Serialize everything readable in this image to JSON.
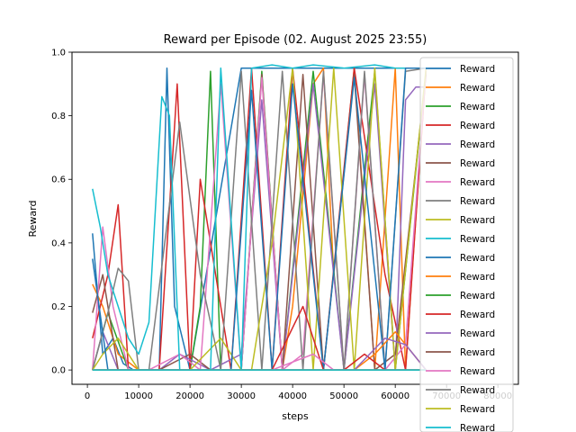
{
  "chart_data": {
    "type": "line",
    "title": "Reward per Episode (02. August 2025 23:55)",
    "xlabel": "steps",
    "ylabel": "Reward",
    "xlim": [
      -3000,
      84000
    ],
    "ylim": [
      -0.045,
      1.0
    ],
    "xticks": [
      0,
      10000,
      20000,
      30000,
      40000,
      50000,
      60000,
      70000,
      80000
    ],
    "xtick_labels": [
      "0",
      "10000",
      "20000",
      "30000",
      "40000",
      "50000",
      "60000",
      "70000",
      "80000"
    ],
    "yticks": [
      0.0,
      0.2,
      0.4,
      0.6,
      0.8,
      1.0
    ],
    "ytick_labels": [
      "0.0",
      "0.2",
      "0.4",
      "0.6",
      "0.8",
      "1.0"
    ],
    "grid": false,
    "legend": "upper-right",
    "colors": [
      "#1f77b4",
      "#ff7f0e",
      "#2ca02c",
      "#d62728",
      "#9467bd",
      "#8c564b",
      "#e377c2",
      "#7f7f7f",
      "#bcbd22",
      "#17becf"
    ],
    "series": [
      {
        "name": "Reward",
        "x": [
          1000,
          3000,
          5000,
          7000,
          9000,
          12000,
          14000,
          15500,
          17000,
          20000,
          30000,
          40000,
          50000,
          60000,
          66000
        ],
        "y": [
          0.43,
          0.05,
          0.1,
          0.02,
          0.0,
          0.0,
          0.0,
          0.95,
          0.2,
          0.0,
          0.95,
          0.95,
          0.95,
          0.95,
          0.95
        ]
      },
      {
        "name": "Reward",
        "x": [
          1000,
          3000,
          6000,
          10000,
          20000,
          30000,
          38000,
          40000,
          44000,
          46000,
          48000,
          52000,
          56000,
          60000,
          62000,
          66000
        ],
        "y": [
          0.27,
          0.2,
          0.05,
          0.0,
          0.0,
          0.0,
          0.0,
          0.2,
          0.9,
          0.95,
          0.3,
          0.95,
          0.0,
          0.95,
          0.0,
          0.95
        ]
      },
      {
        "name": "Reward",
        "x": [
          1000,
          4000,
          8000,
          12000,
          20000,
          22000,
          24000,
          26000,
          30000,
          34000,
          38000,
          44000,
          50000,
          56000,
          60000,
          66000
        ],
        "y": [
          0.0,
          0.18,
          0.0,
          0.0,
          0.0,
          0.2,
          0.94,
          0.0,
          0.0,
          0.94,
          0.0,
          0.94,
          0.0,
          0.94,
          0.0,
          0.94
        ]
      },
      {
        "name": "Reward",
        "x": [
          1000,
          4000,
          6000,
          8000,
          14000,
          17500,
          20000,
          22000,
          28000,
          32000,
          36000,
          40000,
          46000,
          52000,
          58000,
          62000,
          66000
        ],
        "y": [
          0.1,
          0.3,
          0.52,
          0.0,
          0.0,
          0.9,
          0.0,
          0.6,
          0.0,
          0.95,
          0.0,
          0.95,
          0.0,
          0.95,
          0.3,
          0.0,
          0.95
        ]
      },
      {
        "name": "Reward",
        "x": [
          1000,
          3000,
          6000,
          10000,
          14000,
          18000,
          24000,
          30000,
          34000,
          38000,
          44000,
          50000,
          56000,
          60000,
          62000,
          64000,
          66000
        ],
        "y": [
          0.0,
          0.12,
          0.0,
          0.0,
          0.0,
          0.05,
          0.0,
          0.05,
          0.85,
          0.0,
          0.9,
          0.0,
          0.9,
          0.0,
          0.85,
          0.89,
          0.89
        ]
      },
      {
        "name": "Reward",
        "x": [
          1000,
          3000,
          6000,
          10000,
          14000,
          20000,
          24000,
          30000,
          34000,
          38000,
          42000,
          46000,
          52000,
          56000,
          60000,
          66000
        ],
        "y": [
          0.18,
          0.3,
          0.0,
          0.0,
          0.0,
          0.05,
          0.0,
          0.0,
          0.93,
          0.0,
          0.93,
          0.0,
          0.93,
          0.0,
          0.05,
          0.93
        ]
      },
      {
        "name": "Reward",
        "x": [
          1000,
          3000,
          5000,
          8000,
          12000,
          18000,
          22000,
          26000,
          30000,
          34000,
          38000,
          42000,
          46000,
          50000,
          54000,
          58000,
          62000,
          66000
        ],
        "y": [
          0.0,
          0.45,
          0.2,
          0.0,
          0.0,
          0.05,
          0.0,
          0.9,
          0.0,
          0.92,
          0.0,
          0.05,
          0.93,
          0.0,
          0.93,
          0.0,
          0.08,
          0.95
        ]
      },
      {
        "name": "Reward",
        "x": [
          1000,
          4000,
          6000,
          8000,
          10000,
          12000,
          18000,
          22000,
          26000,
          30000,
          34000,
          38000,
          42000,
          46000,
          50000,
          54000,
          58000,
          62000,
          66000
        ],
        "y": [
          0.0,
          0.18,
          0.32,
          0.28,
          0.0,
          0.0,
          0.78,
          0.3,
          0.0,
          0.94,
          0.0,
          0.94,
          0.0,
          0.94,
          0.0,
          0.94,
          0.0,
          0.94,
          0.95
        ]
      },
      {
        "name": "Reward",
        "x": [
          1000,
          3000,
          6000,
          10000,
          16000,
          20000,
          26000,
          30000,
          32000,
          36000,
          40000,
          44000,
          48000,
          52000,
          56000,
          60000,
          66000
        ],
        "y": [
          0.0,
          0.05,
          0.1,
          0.0,
          0.0,
          0.0,
          0.1,
          0.0,
          0.0,
          0.4,
          0.95,
          0.0,
          0.95,
          0.0,
          0.95,
          0.0,
          0.95
        ]
      },
      {
        "name": "Reward",
        "x": [
          1000,
          2500,
          4000,
          6000,
          8000,
          10000,
          12000,
          14500,
          16000,
          18000,
          20000,
          24000,
          26000,
          30000,
          32000,
          36000,
          40000,
          44000,
          50000,
          56000,
          60000,
          66000
        ],
        "y": [
          0.57,
          0.45,
          0.3,
          0.2,
          0.1,
          0.05,
          0.15,
          0.86,
          0.8,
          0.0,
          0.0,
          0.0,
          0.95,
          0.0,
          0.95,
          0.96,
          0.95,
          0.96,
          0.95,
          0.96,
          0.95,
          0.95
        ]
      },
      {
        "name": "Reward",
        "x": [
          1000,
          4000,
          8000,
          12000,
          20000,
          28000,
          32000,
          36000,
          40000,
          46000,
          52000,
          58000,
          62000,
          66000
        ],
        "y": [
          0.35,
          0.0,
          0.0,
          0.0,
          0.0,
          0.0,
          0.88,
          0.0,
          0.9,
          0.0,
          0.92,
          0.0,
          0.95,
          0.95
        ]
      },
      {
        "name": "Reward",
        "x": [
          1000,
          4000,
          8000,
          16000,
          24000,
          32000,
          40000,
          48000,
          52000,
          56000,
          60000,
          66000
        ],
        "y": [
          0.0,
          0.0,
          0.0,
          0.0,
          0.0,
          0.0,
          0.0,
          0.0,
          0.0,
          0.05,
          0.12,
          0.0
        ]
      },
      {
        "name": "Reward",
        "x": [
          1000,
          6000,
          12000,
          20000,
          28000,
          36000,
          44000,
          50000,
          54000,
          58000,
          62000,
          66000
        ],
        "y": [
          0.0,
          0.0,
          0.0,
          0.0,
          0.0,
          0.0,
          0.0,
          0.0,
          0.0,
          0.0,
          0.0,
          0.0
        ]
      },
      {
        "name": "Reward",
        "x": [
          1000,
          6000,
          12000,
          20000,
          28000,
          36000,
          42000,
          46000,
          50000,
          54000,
          58000,
          66000
        ],
        "y": [
          0.0,
          0.0,
          0.0,
          0.0,
          0.0,
          0.0,
          0.2,
          0.0,
          0.0,
          0.05,
          0.0,
          0.0
        ]
      },
      {
        "name": "Reward",
        "x": [
          1000,
          6000,
          12000,
          20000,
          28000,
          36000,
          44000,
          52000,
          58000,
          62000,
          66000
        ],
        "y": [
          0.0,
          0.0,
          0.0,
          0.0,
          0.0,
          0.0,
          0.0,
          0.0,
          0.1,
          0.08,
          0.0
        ]
      },
      {
        "name": "Reward",
        "x": [
          1000,
          6000,
          12000,
          20000,
          28000,
          36000,
          44000,
          52000,
          60000,
          66000
        ],
        "y": [
          0.0,
          0.0,
          0.0,
          0.0,
          0.0,
          0.0,
          0.0,
          0.0,
          0.0,
          0.0
        ]
      },
      {
        "name": "Reward",
        "x": [
          1000,
          6000,
          12000,
          20000,
          28000,
          36000,
          44000,
          48000,
          52000,
          58000,
          66000
        ],
        "y": [
          0.0,
          0.0,
          0.0,
          0.0,
          0.0,
          0.0,
          0.05,
          0.0,
          0.0,
          0.0,
          0.0
        ]
      },
      {
        "name": "Reward",
        "x": [
          1000,
          8000,
          16000,
          24000,
          32000,
          40000,
          48000,
          56000,
          66000
        ],
        "y": [
          0.0,
          0.0,
          0.0,
          0.0,
          0.0,
          0.0,
          0.0,
          0.0,
          0.0
        ]
      },
      {
        "name": "Reward",
        "x": [
          1000,
          8000,
          16000,
          24000,
          32000,
          40000,
          48000,
          56000,
          66000
        ],
        "y": [
          0.0,
          0.0,
          0.0,
          0.0,
          0.0,
          0.0,
          0.0,
          0.0,
          0.0
        ]
      },
      {
        "name": "Reward",
        "x": [
          1000,
          8000,
          16000,
          24000,
          32000,
          40000,
          48000,
          56000,
          66000
        ],
        "y": [
          0.0,
          0.0,
          0.0,
          0.0,
          0.0,
          0.0,
          0.0,
          0.0,
          0.0
        ]
      }
    ]
  }
}
